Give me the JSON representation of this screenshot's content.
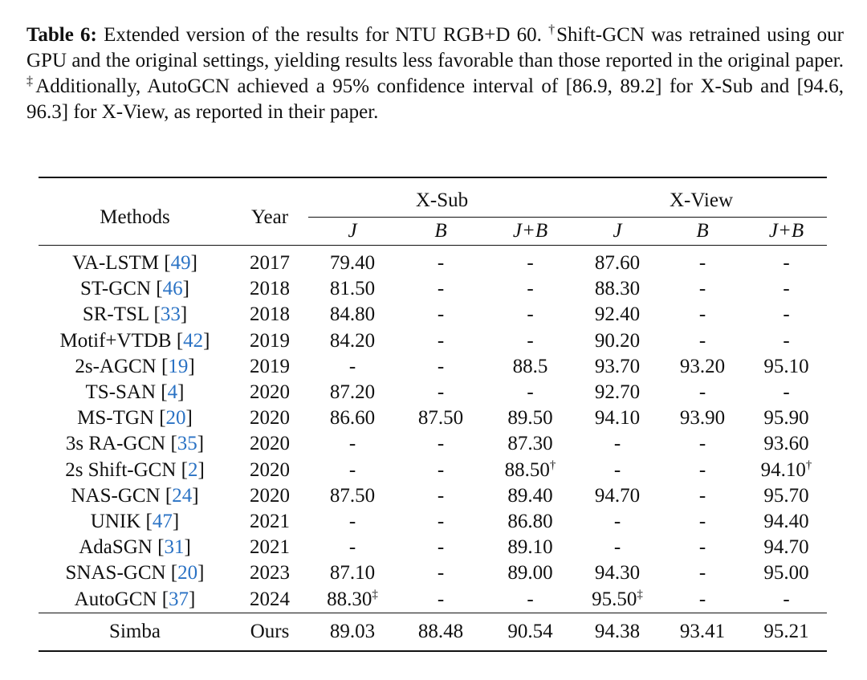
{
  "caption": {
    "label": "Table 6:",
    "text_1": " Extended version of the results for NTU RGB+D 60. ",
    "dagger": "†",
    "text_2": "Shift-GCN was retrained using our GPU and the original settings, yielding results less favorable than those reported in the original paper. ",
    "ddagger": "‡",
    "text_3": "Additionally, AutoGCN achieved a 95% confidence interval of [86.9, 89.2] for X-Sub and [94.6, 96.3] for X-View, as reported in their paper."
  },
  "table": {
    "headers": {
      "methods": "Methods",
      "year": "Year",
      "xsub": "X-Sub",
      "xview": "X-View",
      "sub_cols": [
        "J",
        "B",
        "J+B",
        "J",
        "B",
        "J+B"
      ]
    },
    "rows": [
      {
        "name": "VA-LSTM [",
        "cite": "49",
        "close": "]",
        "year": "2017",
        "v": [
          "79.40",
          "-",
          "-",
          "87.60",
          "-",
          "-"
        ],
        "m": [
          "",
          "",
          "",
          "",
          "",
          ""
        ]
      },
      {
        "name": "ST-GCN [",
        "cite": "46",
        "close": "]",
        "year": "2018",
        "v": [
          "81.50",
          "-",
          "-",
          "88.30",
          "-",
          "-"
        ],
        "m": [
          "",
          "",
          "",
          "",
          "",
          ""
        ]
      },
      {
        "name": "SR-TSL [",
        "cite": "33",
        "close": "]",
        "year": "2018",
        "v": [
          "84.80",
          "-",
          "-",
          "92.40",
          "-",
          "-"
        ],
        "m": [
          "",
          "",
          "",
          "",
          "",
          ""
        ]
      },
      {
        "name": "Motif+VTDB [",
        "cite": "42",
        "close": "]",
        "year": "2019",
        "v": [
          "84.20",
          "-",
          "-",
          "90.20",
          "-",
          "-"
        ],
        "m": [
          "",
          "",
          "",
          "",
          "",
          ""
        ]
      },
      {
        "name": "2s-AGCN [",
        "cite": "19",
        "close": "]",
        "year": "2019",
        "v": [
          "-",
          "-",
          "88.5",
          "93.70",
          "93.20",
          "95.10"
        ],
        "m": [
          "",
          "",
          "",
          "",
          "",
          ""
        ]
      },
      {
        "name": "TS-SAN [",
        "cite": "4",
        "close": "]",
        "year": "2020",
        "v": [
          "87.20",
          "-",
          "-",
          "92.70",
          "-",
          "-"
        ],
        "m": [
          "",
          "",
          "",
          "",
          "",
          ""
        ]
      },
      {
        "name": "MS-TGN [",
        "cite": "20",
        "close": "]",
        "year": "2020",
        "v": [
          "86.60",
          "87.50",
          "89.50",
          "94.10",
          "93.90",
          "95.90"
        ],
        "m": [
          "",
          "",
          "",
          "",
          "",
          ""
        ]
      },
      {
        "name": "3s RA-GCN [",
        "cite": "35",
        "close": "]",
        "year": "2020",
        "v": [
          "-",
          "-",
          "87.30",
          "-",
          "-",
          "93.60"
        ],
        "m": [
          "",
          "",
          "",
          "",
          "",
          ""
        ]
      },
      {
        "name": "2s Shift-GCN [",
        "cite": "2",
        "close": "]",
        "year": "2020",
        "v": [
          "-",
          "-",
          "88.50",
          "-",
          "-",
          "94.10"
        ],
        "m": [
          "",
          "",
          "†",
          "",
          "",
          "†"
        ]
      },
      {
        "name": "NAS-GCN [",
        "cite": "24",
        "close": "]",
        "year": "2020",
        "v": [
          "87.50",
          "-",
          "89.40",
          "94.70",
          "-",
          "95.70"
        ],
        "m": [
          "",
          "",
          "",
          "",
          "",
          ""
        ]
      },
      {
        "name": "UNIK [",
        "cite": "47",
        "close": "]",
        "year": "2021",
        "v": [
          "-",
          "-",
          "86.80",
          "-",
          "-",
          "94.40"
        ],
        "m": [
          "",
          "",
          "",
          "",
          "",
          ""
        ]
      },
      {
        "name": "AdaSGN [",
        "cite": "31",
        "close": "]",
        "year": "2021",
        "v": [
          "-",
          "-",
          "89.10",
          "-",
          "-",
          "94.70"
        ],
        "m": [
          "",
          "",
          "",
          "",
          "",
          ""
        ]
      },
      {
        "name": "SNAS-GCN [",
        "cite": "20",
        "close": "]",
        "year": "2023",
        "v": [
          "87.10",
          "-",
          "89.00",
          "94.30",
          "-",
          "95.00"
        ],
        "m": [
          "",
          "",
          "",
          "",
          "",
          ""
        ]
      },
      {
        "name": "AutoGCN [",
        "cite": "37",
        "close": "]",
        "year": "2024",
        "v": [
          "88.30",
          "-",
          "-",
          "95.50",
          "-",
          "-"
        ],
        "m": [
          "‡",
          "",
          "",
          "‡",
          "",
          ""
        ]
      }
    ],
    "ours": {
      "name": "Simba",
      "year": "Ours",
      "v": [
        "89.03",
        "88.48",
        "90.54",
        "94.38",
        "93.41",
        "95.21"
      ]
    }
  }
}
